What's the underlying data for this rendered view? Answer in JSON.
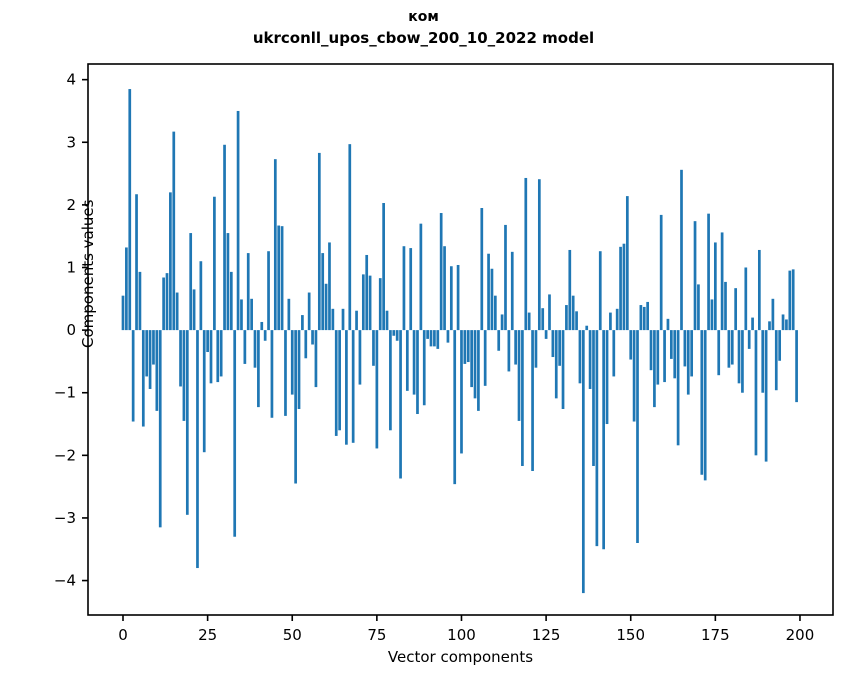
{
  "title": {
    "line1": "ком",
    "line2": "ukrconll_upos_cbow_200_10_2022 model"
  },
  "chart_data": {
    "type": "bar",
    "title": "ком\nukrconll_upos_cbow_200_10_2022 model",
    "xlabel": "Vector components",
    "ylabel": "Components values",
    "bar_color": "#1f77b4",
    "axis_color": "#000000",
    "n_bars": 200,
    "x_start": 0,
    "xlim": [
      -10.34,
      209.76
    ],
    "ylim": [
      -4.55,
      4.25
    ],
    "xticks": [
      0,
      25,
      50,
      75,
      100,
      125,
      150,
      175,
      200
    ],
    "yticks": [
      -4,
      -3,
      -2,
      -1,
      0,
      1,
      2,
      3,
      4
    ],
    "grid": false,
    "legend": null,
    "values": [
      0.55,
      1.32,
      3.85,
      -1.46,
      2.17,
      0.93,
      -1.54,
      -0.74,
      -0.94,
      -0.55,
      -1.29,
      -3.15,
      0.84,
      0.91,
      2.2,
      3.17,
      0.6,
      -0.9,
      -1.45,
      -2.95,
      1.55,
      0.65,
      -3.8,
      1.1,
      -1.95,
      -0.35,
      -0.85,
      2.13,
      -0.83,
      -0.74,
      2.96,
      1.55,
      0.93,
      -3.3,
      3.5,
      0.49,
      -0.54,
      1.23,
      0.5,
      -0.6,
      -1.23,
      0.13,
      -0.17,
      1.26,
      -1.4,
      2.73,
      1.67,
      1.66,
      -1.37,
      0.5,
      -1.03,
      -2.45,
      -1.26,
      0.24,
      -0.45,
      0.6,
      -0.23,
      -0.91,
      2.83,
      1.23,
      0.74,
      1.4,
      0.34,
      -1.69,
      -1.6,
      0.34,
      -1.83,
      2.97,
      -1.8,
      0.31,
      -0.87,
      0.89,
      1.2,
      0.87,
      -0.57,
      -1.89,
      0.83,
      2.03,
      0.31,
      -1.6,
      -0.09,
      -0.17,
      -2.37,
      1.34,
      -0.97,
      1.31,
      -1.03,
      -1.34,
      1.7,
      -1.2,
      -0.14,
      -0.26,
      -0.26,
      -0.3,
      1.87,
      1.34,
      -0.2,
      1.02,
      -2.46,
      1.04,
      -1.97,
      -0.54,
      -0.51,
      -0.91,
      -1.09,
      -1.29,
      1.95,
      -0.89,
      1.22,
      0.98,
      0.55,
      -0.33,
      0.25,
      1.68,
      -0.66,
      1.25,
      -0.55,
      -1.45,
      -2.17,
      2.43,
      0.28,
      -2.25,
      -0.6,
      2.41,
      0.35,
      -0.14,
      0.57,
      -0.43,
      -1.09,
      -0.57,
      -1.26,
      0.4,
      1.28,
      0.55,
      0.3,
      -0.85,
      -4.2,
      0.07,
      -0.94,
      -2.17,
      -3.45,
      1.26,
      -3.5,
      -1.5,
      0.28,
      -0.74,
      0.34,
      1.33,
      1.38,
      2.14,
      -0.47,
      -1.46,
      -3.4,
      0.4,
      0.37,
      0.45,
      -0.64,
      -1.23,
      -0.87,
      1.84,
      -0.83,
      0.18,
      -0.46,
      -0.77,
      -1.84,
      2.56,
      -0.58,
      -1.03,
      -0.74,
      1.74,
      0.73,
      -2.31,
      -2.4,
      1.86,
      0.49,
      1.4,
      -0.72,
      1.56,
      0.77,
      -0.6,
      -0.55,
      0.67,
      -0.85,
      -1.0,
      1.0,
      -0.3,
      0.2,
      -2.0,
      1.28,
      -1.0,
      -2.1,
      0.14,
      0.5,
      -0.96,
      -0.49,
      0.25,
      0.17,
      0.95,
      0.97,
      -1.15
    ]
  }
}
